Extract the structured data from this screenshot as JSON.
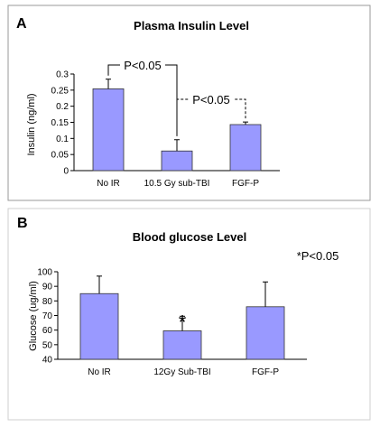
{
  "chart_data": [
    {
      "type": "bar",
      "panel_label": "A",
      "title": "Plasma Insulin Level",
      "xlabel": "",
      "ylabel": "Insulin (ng/ml)",
      "ylim": [
        0,
        0.3
      ],
      "yticks": [
        "0",
        "0.05",
        "0.1",
        "0.15",
        "0.2",
        "0.25",
        "0.3"
      ],
      "categories": [
        "No IR",
        "10.5 Gy sub-TBI",
        "FGF-P"
      ],
      "values": [
        0.254,
        0.061,
        0.143
      ],
      "errors": [
        0.03,
        0.035,
        0.008
      ],
      "bar_color": "#9999ff",
      "grid": false,
      "annotations": [
        {
          "text": "P<0.05",
          "between": [
            0,
            1
          ],
          "style": "solid"
        },
        {
          "text": "P<0.05",
          "between": [
            1,
            2
          ],
          "style": "dashed"
        }
      ]
    },
    {
      "type": "bar",
      "panel_label": "B",
      "title": "Blood glucose Level",
      "xlabel": "",
      "ylabel": "Glucose (ug/ml)",
      "ylim": [
        40,
        100
      ],
      "yticks": [
        "40",
        "50",
        "60",
        "70",
        "80",
        "90",
        "100"
      ],
      "categories": [
        "No IR",
        "12Gy Sub-TBI",
        "FGF-P"
      ],
      "values": [
        85,
        59.5,
        76
      ],
      "errors": [
        12,
        10,
        17
      ],
      "bar_color": "#9999ff",
      "grid": false,
      "legend_note": "*P<0.05",
      "star_marker": "*",
      "star_on": 1
    }
  ]
}
